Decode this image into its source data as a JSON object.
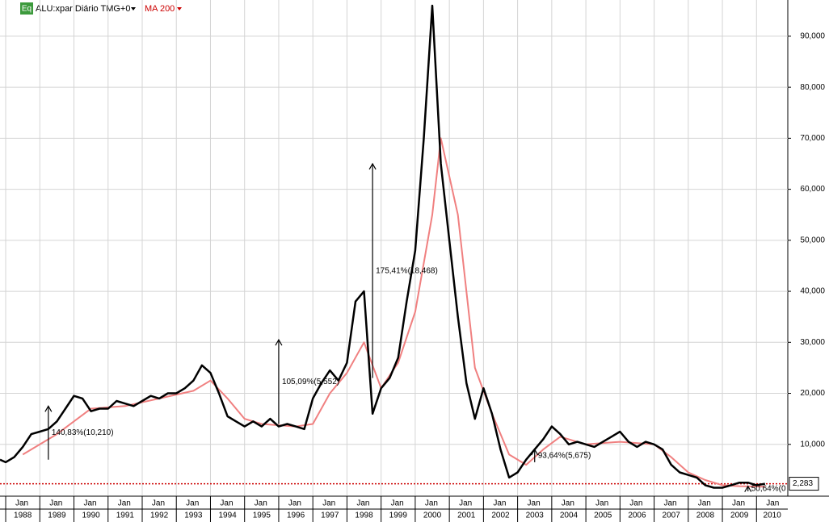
{
  "chart_data": {
    "type": "line",
    "toolbar": {
      "badge": "Eq",
      "symbol": "ALU:xpar Diário TMG+0",
      "indicator": "MA 200"
    },
    "x": [
      "1987-11",
      "1988-01",
      "1988-04",
      "1988-07",
      "1988-10",
      "1989-01",
      "1989-04",
      "1989-07",
      "1989-10",
      "1990-01",
      "1990-04",
      "1990-07",
      "1990-10",
      "1991-01",
      "1991-04",
      "1991-07",
      "1991-10",
      "1992-01",
      "1992-04",
      "1992-07",
      "1992-10",
      "1993-01",
      "1993-04",
      "1993-07",
      "1993-10",
      "1994-01",
      "1994-04",
      "1994-07",
      "1994-10",
      "1995-01",
      "1995-04",
      "1995-07",
      "1995-10",
      "1996-01",
      "1996-04",
      "1996-07",
      "1996-10",
      "1997-01",
      "1997-04",
      "1997-07",
      "1997-10",
      "1998-01",
      "1998-04",
      "1998-07",
      "1998-10",
      "1999-01",
      "1999-04",
      "1999-07",
      "1999-10",
      "2000-01",
      "2000-04",
      "2000-07",
      "2000-10",
      "2001-01",
      "2001-04",
      "2001-07",
      "2001-10",
      "2002-01",
      "2002-04",
      "2002-07",
      "2002-10",
      "2003-01",
      "2003-04",
      "2003-07",
      "2003-10",
      "2004-01",
      "2004-04",
      "2004-07",
      "2004-10",
      "2005-01",
      "2005-04",
      "2005-07",
      "2005-10",
      "2006-01",
      "2006-04",
      "2006-07",
      "2006-10",
      "2007-01",
      "2007-04",
      "2007-07",
      "2007-10",
      "2008-01",
      "2008-04",
      "2008-07",
      "2008-10",
      "2009-01",
      "2009-04",
      "2009-07",
      "2009-10",
      "2010-01",
      "2010-04"
    ],
    "series": [
      {
        "name": "ALU:xpar",
        "color": "#000000",
        "values": [
          7000,
          6500,
          7500,
          9500,
          12000,
          12500,
          13000,
          14500,
          17000,
          19500,
          19000,
          16500,
          17000,
          17000,
          18500,
          18000,
          17500,
          18500,
          19500,
          19000,
          20000,
          20000,
          21000,
          22500,
          25500,
          24000,
          20000,
          15500,
          14500,
          13500,
          14500,
          13500,
          15000,
          13500,
          14000,
          13500,
          13000,
          19000,
          22000,
          24500,
          22500,
          26000,
          38000,
          40000,
          16000,
          21000,
          23000,
          27000,
          38000,
          48000,
          70000,
          96000,
          65000,
          50000,
          35000,
          22000,
          15000,
          21000,
          16000,
          9000,
          3500,
          4500,
          7000,
          9000,
          11000,
          13500,
          12000,
          10000,
          10500,
          10000,
          9500,
          10500,
          11500,
          12500,
          10500,
          9500,
          10500,
          10000,
          9000,
          6000,
          4500,
          4000,
          3500,
          2000,
          1500,
          1500,
          2000,
          2500,
          2500,
          2000,
          2283
        ]
      },
      {
        "name": "MA 200",
        "color": "#f08080",
        "x": [
          "1988-07",
          "1989-07",
          "1990-07",
          "1991-07",
          "1992-07",
          "1993-07",
          "1994-01",
          "1994-07",
          "1995-01",
          "1995-07",
          "1996-07",
          "1997-01",
          "1997-07",
          "1998-01",
          "1998-07",
          "1999-01",
          "1999-07",
          "2000-01",
          "2000-07",
          "2000-10",
          "2001-04",
          "2001-10",
          "2002-04",
          "2002-10",
          "2003-04",
          "2003-10",
          "2004-04",
          "2005-01",
          "2006-01",
          "2007-01",
          "2007-07",
          "2008-01",
          "2008-07",
          "2009-01",
          "2009-07",
          "2010-04"
        ],
        "values": [
          8000,
          12000,
          17000,
          17500,
          19000,
          20500,
          22500,
          19000,
          15000,
          14000,
          13500,
          14000,
          20000,
          24000,
          30000,
          21000,
          26000,
          36000,
          55000,
          70000,
          55000,
          25000,
          16000,
          8000,
          6000,
          9000,
          11500,
          10000,
          10500,
          10000,
          7500,
          4500,
          3000,
          2000,
          1800,
          1700
        ]
      }
    ],
    "xlim": [
      "1987-11",
      "2010-12"
    ],
    "xticks": [
      {
        "value": "1988-01",
        "label": "1988"
      },
      {
        "value": "1989-01",
        "label": "1989"
      },
      {
        "value": "1990-01",
        "label": "1990"
      },
      {
        "value": "1991-01",
        "label": "1991"
      },
      {
        "value": "1992-01",
        "label": "1992"
      },
      {
        "value": "1993-01",
        "label": "1993"
      },
      {
        "value": "1994-01",
        "label": "1994"
      },
      {
        "value": "1995-01",
        "label": "1995"
      },
      {
        "value": "1996-01",
        "label": "1996"
      },
      {
        "value": "1997-01",
        "label": "1997"
      },
      {
        "value": "1998-01",
        "label": "1998"
      },
      {
        "value": "1999-01",
        "label": "1999"
      },
      {
        "value": "2000-01",
        "label": "2000"
      },
      {
        "value": "2001-01",
        "label": "2001"
      },
      {
        "value": "2002-01",
        "label": "2002"
      },
      {
        "value": "2003-01",
        "label": "2003"
      },
      {
        "value": "2004-01",
        "label": "2004"
      },
      {
        "value": "2005-01",
        "label": "2005"
      },
      {
        "value": "2006-01",
        "label": "2006"
      },
      {
        "value": "2007-01",
        "label": "2007"
      },
      {
        "value": "2008-01",
        "label": "2008"
      },
      {
        "value": "2009-01",
        "label": "2009"
      },
      {
        "value": "2010-01",
        "label": "2010"
      }
    ],
    "xtick_month": "Jan",
    "ylim": [
      0,
      97100
    ],
    "yticks": [
      {
        "value": 10000,
        "label": "10,000"
      },
      {
        "value": 20000,
        "label": "20,000"
      },
      {
        "value": 30000,
        "label": "30,000"
      },
      {
        "value": 40000,
        "label": "40,000"
      },
      {
        "value": 50000,
        "label": "50,000"
      },
      {
        "value": 60000,
        "label": "60,000"
      },
      {
        "value": 70000,
        "label": "70,000"
      },
      {
        "value": 80000,
        "label": "80,000"
      },
      {
        "value": 90000,
        "label": "90,000"
      }
    ],
    "grid": true,
    "last_price": {
      "value": 2283,
      "label": "2,283",
      "color": "#cc0000"
    },
    "annotations": [
      {
        "text": "140,83%(10,210)",
        "x": "1989-04",
        "from": 7000,
        "to": 17500
      },
      {
        "text": "105,09%(5,552)",
        "x": "1996-01",
        "from": 14000,
        "to": 30500
      },
      {
        "text": "175,41%(18,468)",
        "x": "1998-10",
        "from": 23000,
        "to": 65000
      },
      {
        "text": "93,64%(5,675)",
        "x": "2003-07",
        "from": 6500,
        "to": 9000
      },
      {
        "text": "50,64%(0",
        "x": "2009-10",
        "from": 800,
        "to": 1800
      }
    ]
  }
}
